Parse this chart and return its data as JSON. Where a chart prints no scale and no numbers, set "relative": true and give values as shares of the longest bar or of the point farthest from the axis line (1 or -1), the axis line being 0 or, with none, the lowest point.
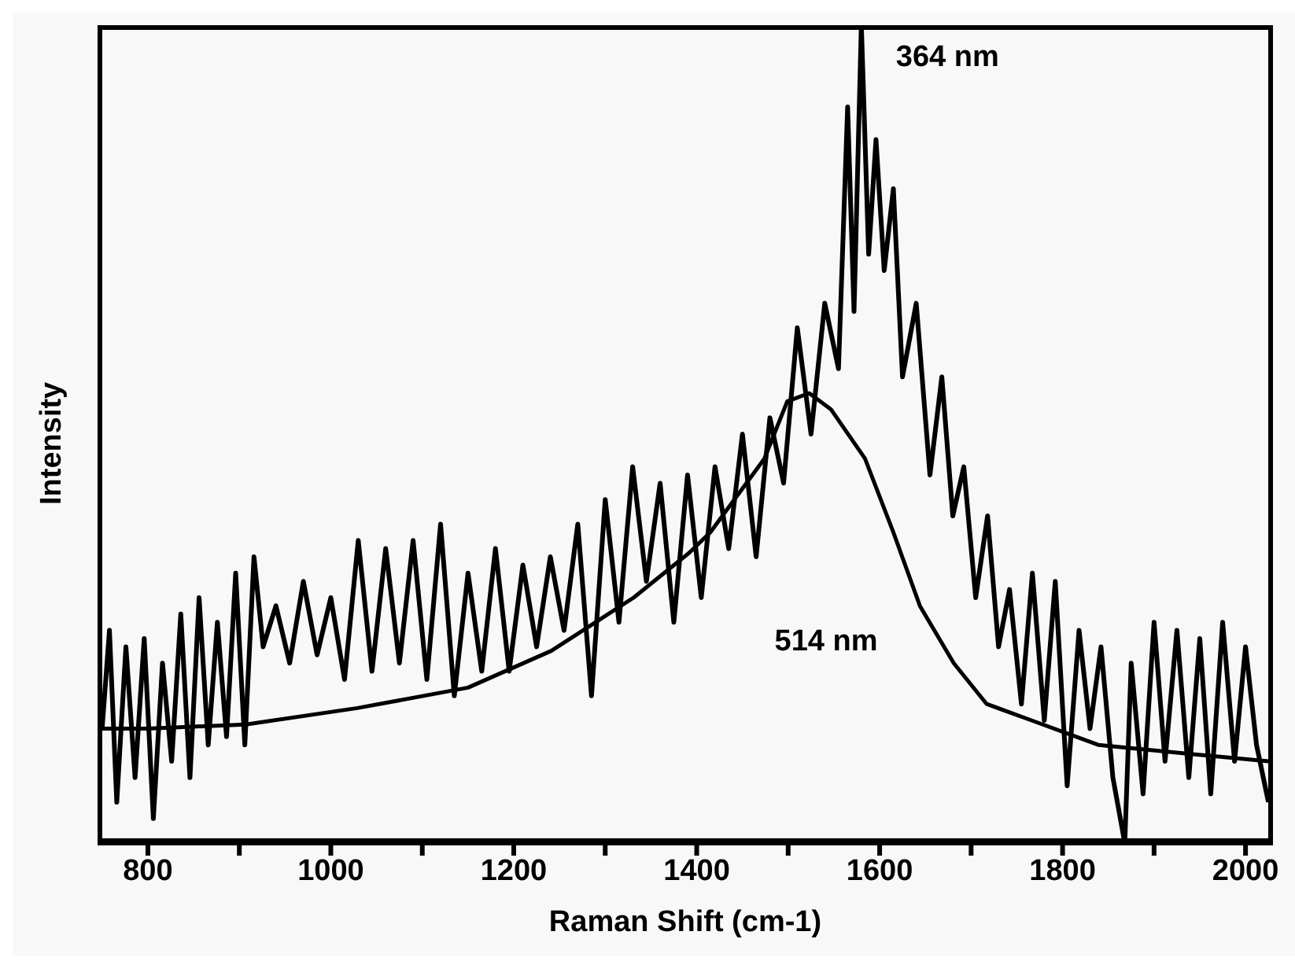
{
  "chart_data": {
    "type": "line",
    "xlabel": "Raman Shift (cm-1)",
    "ylabel": "Intensity",
    "relative": true,
    "xlim": [
      745,
      2030
    ],
    "xticks": [
      800,
      {
        "value": 900,
        "label": null
      },
      1000,
      {
        "value": 1100,
        "label": null
      },
      1200,
      {
        "value": 1300,
        "label": null
      },
      1400,
      {
        "value": 1500,
        "label": null
      },
      1600,
      {
        "value": 1700,
        "label": null
      },
      1800,
      {
        "value": 1900,
        "label": null
      },
      2000
    ],
    "marker": "none",
    "line_style": "solid",
    "series": [
      {
        "name": "364 nm",
        "color": "#000000",
        "x": [
          750,
          758,
          766,
          776,
          786,
          796,
          806,
          816,
          826,
          836,
          846,
          856,
          866,
          876,
          886,
          896,
          906,
          916,
          926,
          940,
          955,
          970,
          985,
          1000,
          1015,
          1030,
          1045,
          1060,
          1075,
          1090,
          1105,
          1120,
          1135,
          1150,
          1165,
          1180,
          1195,
          1210,
          1225,
          1240,
          1255,
          1270,
          1285,
          1300,
          1315,
          1330,
          1345,
          1360,
          1375,
          1390,
          1405,
          1420,
          1435,
          1450,
          1465,
          1480,
          1495,
          1510,
          1525,
          1540,
          1555,
          1565,
          1572,
          1580,
          1588,
          1596,
          1605,
          1615,
          1625,
          1640,
          1655,
          1668,
          1680,
          1692,
          1705,
          1718,
          1730,
          1742,
          1755,
          1767,
          1780,
          1792,
          1805,
          1818,
          1830,
          1842,
          1855,
          1868,
          1875,
          1888,
          1900,
          1912,
          1925,
          1938,
          1950,
          1962,
          1975,
          1988,
          2000,
          2012,
          2025
        ],
        "values": [
          0.14,
          0.26,
          0.05,
          0.24,
          0.08,
          0.25,
          0.03,
          0.22,
          0.1,
          0.28,
          0.08,
          0.3,
          0.12,
          0.27,
          0.13,
          0.33,
          0.12,
          0.35,
          0.24,
          0.29,
          0.22,
          0.32,
          0.23,
          0.3,
          0.2,
          0.37,
          0.21,
          0.36,
          0.22,
          0.37,
          0.2,
          0.39,
          0.18,
          0.33,
          0.21,
          0.36,
          0.21,
          0.34,
          0.24,
          0.35,
          0.26,
          0.39,
          0.18,
          0.42,
          0.27,
          0.46,
          0.32,
          0.44,
          0.27,
          0.45,
          0.3,
          0.46,
          0.36,
          0.5,
          0.35,
          0.52,
          0.44,
          0.63,
          0.5,
          0.66,
          0.58,
          0.9,
          0.65,
          1.0,
          0.72,
          0.86,
          0.7,
          0.8,
          0.57,
          0.66,
          0.45,
          0.57,
          0.4,
          0.46,
          0.3,
          0.4,
          0.24,
          0.31,
          0.17,
          0.33,
          0.15,
          0.32,
          0.07,
          0.26,
          0.14,
          0.24,
          0.08,
          0.0,
          0.22,
          0.06,
          0.27,
          0.1,
          0.26,
          0.08,
          0.25,
          0.06,
          0.27,
          0.1,
          0.24,
          0.12,
          0.05
        ]
      },
      {
        "name": "514 nm",
        "color": "#000000",
        "x": [
          750,
          800,
          907,
          1029,
          1150,
          1241,
          1331,
          1392,
          1415,
          1474,
          1499,
          1523,
          1547,
          1584,
          1615,
          1644,
          1681,
          1717,
          1766,
          1839,
          1929,
          2025
        ],
        "values": [
          0.14,
          0.14,
          0.145,
          0.165,
          0.19,
          0.235,
          0.3,
          0.355,
          0.38,
          0.47,
          0.54,
          0.55,
          0.53,
          0.47,
          0.38,
          0.29,
          0.22,
          0.17,
          0.15,
          0.12,
          0.11,
          0.1
        ]
      }
    ]
  }
}
